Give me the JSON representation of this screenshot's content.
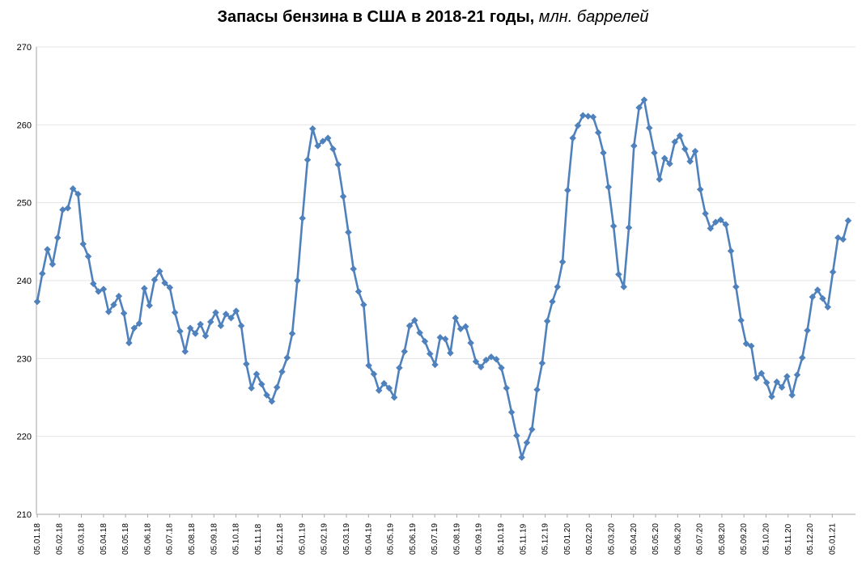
{
  "chart_data": {
    "type": "line",
    "title": "Запасы бензина в США в 2018-21 годы,",
    "title_unit": "млн. баррелей",
    "ylim": [
      210,
      270
    ],
    "yticks": [
      210,
      220,
      230,
      240,
      250,
      260,
      270
    ],
    "grid": "horizontal",
    "series_color": "#4F81BD",
    "x_labels": [
      "05.01.18",
      "05.02.18",
      "05.03.18",
      "05.04.18",
      "05.05.18",
      "05.06.18",
      "05.07.18",
      "05.08.18",
      "05.09.18",
      "05.10.18",
      "05.11.18",
      "05.12.18",
      "05.01.19",
      "05.02.19",
      "05.03.19",
      "05.04.19",
      "05.05.19",
      "05.06.19",
      "05.07.19",
      "05.08.19",
      "05.09.19",
      "05.10.19",
      "05.11.19",
      "05.12.19",
      "05.01.20",
      "05.02.20",
      "05.03.20",
      "05.04.20",
      "05.05.20",
      "05.06.20",
      "05.07.20",
      "05.08.20",
      "05.09.20",
      "05.10.20",
      "05.11.20",
      "05.12.20",
      "05.01.21"
    ],
    "series": [
      {
        "values": [
          237.3,
          240.9,
          244.0,
          242.1,
          245.5,
          249.1,
          249.3,
          251.8,
          251.1,
          244.7,
          243.1,
          239.6,
          238.6,
          238.9,
          236.0,
          236.9,
          238.0,
          235.8,
          232.0,
          233.9,
          234.5,
          239.0,
          236.8,
          240.1,
          241.2,
          239.7,
          239.1,
          235.9,
          233.5,
          230.9,
          233.9,
          233.2,
          234.4,
          232.9,
          234.7,
          235.9,
          234.2,
          235.7,
          235.2,
          236.1,
          234.2,
          229.3,
          226.2,
          228.0,
          226.7,
          225.3,
          224.5,
          226.3,
          228.3,
          230.1,
          233.2,
          240.0,
          248.0,
          255.5,
          259.5,
          257.3,
          257.9,
          258.3,
          256.9,
          254.9,
          250.8,
          246.2,
          241.5,
          238.6,
          236.9,
          229.1,
          228.0,
          225.9,
          226.8,
          226.2,
          225.0,
          228.8,
          230.9,
          234.2,
          234.9,
          233.3,
          232.2,
          230.6,
          229.2,
          232.7,
          232.5,
          230.7,
          235.2,
          233.8,
          234.1,
          232.0,
          229.6,
          228.9,
          229.8,
          230.2,
          229.9,
          228.8,
          226.2,
          223.1,
          220.1,
          217.3,
          219.2,
          220.9,
          226.0,
          229.4,
          234.8,
          237.3,
          239.2,
          242.4,
          251.6,
          258.3,
          259.9,
          261.2,
          261.1,
          261.0,
          259.0,
          256.4,
          252.0,
          247.0,
          240.8,
          239.2,
          246.8,
          257.3,
          262.2,
          263.2,
          259.6,
          256.4,
          253.0,
          255.7,
          255.0,
          257.8,
          258.6,
          256.9,
          255.3,
          256.6,
          251.7,
          248.6,
          246.7,
          247.5,
          247.8,
          247.2,
          243.8,
          239.2,
          234.9,
          231.9,
          231.6,
          227.5,
          228.1,
          226.9,
          225.1,
          227.0,
          226.3,
          227.7,
          225.3,
          227.9,
          230.1,
          233.6,
          237.9,
          238.8,
          237.7,
          236.6,
          241.1,
          245.5,
          245.3,
          247.7
        ]
      }
    ]
  }
}
